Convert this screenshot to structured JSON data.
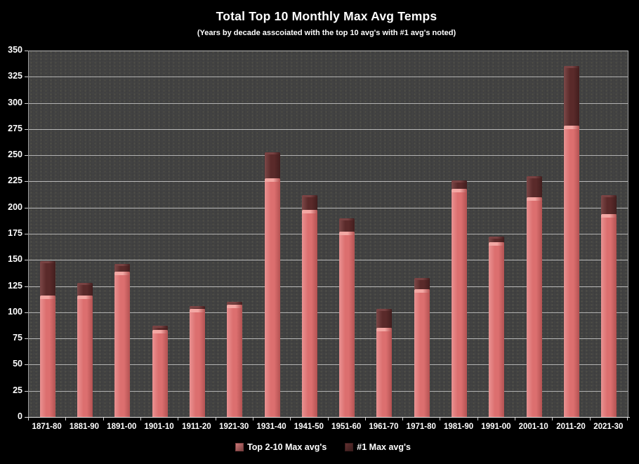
{
  "header": {
    "title": "Total Top 10 Monthly Max Avg Temps",
    "subtitle": "(Years by decade asscoiated with the top 10 avg's with #1 avg's noted)"
  },
  "chart_data": {
    "type": "bar",
    "stacked": true,
    "title": "Total Top 10 Monthly Max Avg Temps",
    "subtitle": "(Years by decade asscoiated with the top 10 avg's with #1 avg's noted)",
    "categories": [
      "1871-80",
      "1881-90",
      "1891-00",
      "1901-10",
      "1911-20",
      "1921-30",
      "1931-40",
      "1941-50",
      "1951-60",
      "1961-70",
      "1971-80",
      "1981-90",
      "1991-00",
      "2001-10",
      "2011-20",
      "2021-30"
    ],
    "series": [
      {
        "name": "Top 2-10 Max avg's",
        "values": [
          116,
          116,
          139,
          83,
          103,
          107,
          228,
          198,
          177,
          85,
          122,
          218,
          167,
          210,
          278,
          194
        ]
      },
      {
        "name": "#1 Max avg's",
        "values": [
          33,
          12,
          7,
          4,
          3,
          3,
          25,
          14,
          13,
          18,
          11,
          8,
          5,
          20,
          57,
          18
        ]
      }
    ],
    "stack_totals": [
      149,
      128,
      146,
      87,
      106,
      110,
      253,
      212,
      190,
      103,
      133,
      226,
      172,
      230,
      335,
      212
    ],
    "xlabel": "",
    "ylabel": "",
    "ylim": [
      0,
      350
    ],
    "ytick_step": 25,
    "yticks": [
      0,
      25,
      50,
      75,
      100,
      125,
      150,
      175,
      200,
      225,
      250,
      275,
      300,
      325,
      350
    ],
    "grid": true,
    "legend_position": "bottom",
    "plot_background": "#3c3c3c",
    "page_background": "#000000",
    "gridline_color": "#c2c2c2",
    "text_color": "#ffffff",
    "series_styles": [
      {
        "fill": "#dc6f6f",
        "edge_light": "#ea9292",
        "edge_dark": "#b25252",
        "cap": "#f4aaa6",
        "cap_height": 5
      },
      {
        "fill": "#5a2a2a",
        "edge_light": "#7d4848",
        "edge_dark": "#421e1e",
        "cap": "#7a4343",
        "cap_height": 3
      }
    ],
    "legend_swatches": [
      {
        "fill": "#cd7878",
        "border": "#7a4040"
      },
      {
        "fill": "#633030",
        "border": "#3a1c1c"
      }
    ]
  }
}
